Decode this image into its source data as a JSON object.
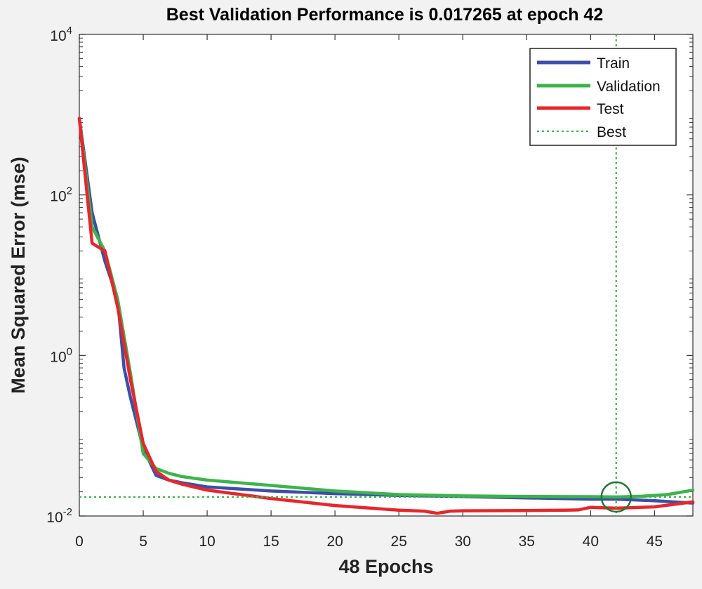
{
  "chart_data": {
    "type": "line",
    "title": "Best Validation Performance is 0.017265 at epoch 42",
    "xlabel": "48 Epochs",
    "ylabel": "Mean Squared Error  (mse)",
    "xlim": [
      0,
      48
    ],
    "ylim_log10": [
      -2,
      4
    ],
    "yscale": "log",
    "x_ticks": [
      0,
      5,
      10,
      15,
      20,
      25,
      30,
      35,
      40,
      45
    ],
    "y_ticks": [
      {
        "value": 0.01,
        "base": "10",
        "exp": "-2"
      },
      {
        "value": 1,
        "base": "10",
        "exp": "0"
      },
      {
        "value": 100,
        "base": "10",
        "exp": "2"
      },
      {
        "value": 10000,
        "base": "10",
        "exp": "4"
      }
    ],
    "best": {
      "epoch": 42,
      "value": 0.017265,
      "label": "Best"
    },
    "legend": {
      "position": "top-right"
    },
    "series": [
      {
        "name": "Train",
        "color": "#3b4fa8",
        "x": [
          0,
          1,
          2,
          3,
          3.5,
          4,
          5,
          6,
          7,
          8,
          10,
          15,
          20,
          25,
          30,
          35,
          40,
          42,
          45,
          48
        ],
        "y": [
          900,
          60,
          15,
          5,
          0.7,
          0.3,
          0.07,
          0.032,
          0.028,
          0.026,
          0.023,
          0.0205,
          0.019,
          0.018,
          0.0175,
          0.0168,
          0.0162,
          0.0162,
          0.0155,
          0.0145
        ]
      },
      {
        "name": "Validation",
        "color": "#3cb44b",
        "x": [
          0,
          1,
          2,
          3,
          4,
          5,
          6,
          7,
          8,
          10,
          15,
          20,
          25,
          30,
          35,
          40,
          42,
          44,
          46,
          48
        ],
        "y": [
          900,
          40,
          20,
          5,
          0.6,
          0.06,
          0.039,
          0.034,
          0.031,
          0.028,
          0.024,
          0.0205,
          0.0185,
          0.0178,
          0.0175,
          0.0174,
          0.017265,
          0.0176,
          0.0185,
          0.021
        ]
      },
      {
        "name": "Test",
        "color": "#e8262a",
        "x": [
          0,
          1,
          2,
          3,
          4,
          5,
          6,
          7,
          8,
          10,
          15,
          20,
          25,
          27,
          28,
          29,
          30,
          35,
          38,
          39,
          40,
          42,
          45,
          48
        ],
        "y": [
          900,
          25,
          20,
          4,
          0.5,
          0.08,
          0.036,
          0.028,
          0.025,
          0.021,
          0.0165,
          0.0135,
          0.0118,
          0.0115,
          0.0108,
          0.0115,
          0.0116,
          0.0117,
          0.0118,
          0.0119,
          0.0128,
          0.0125,
          0.013,
          0.015
        ]
      }
    ]
  }
}
